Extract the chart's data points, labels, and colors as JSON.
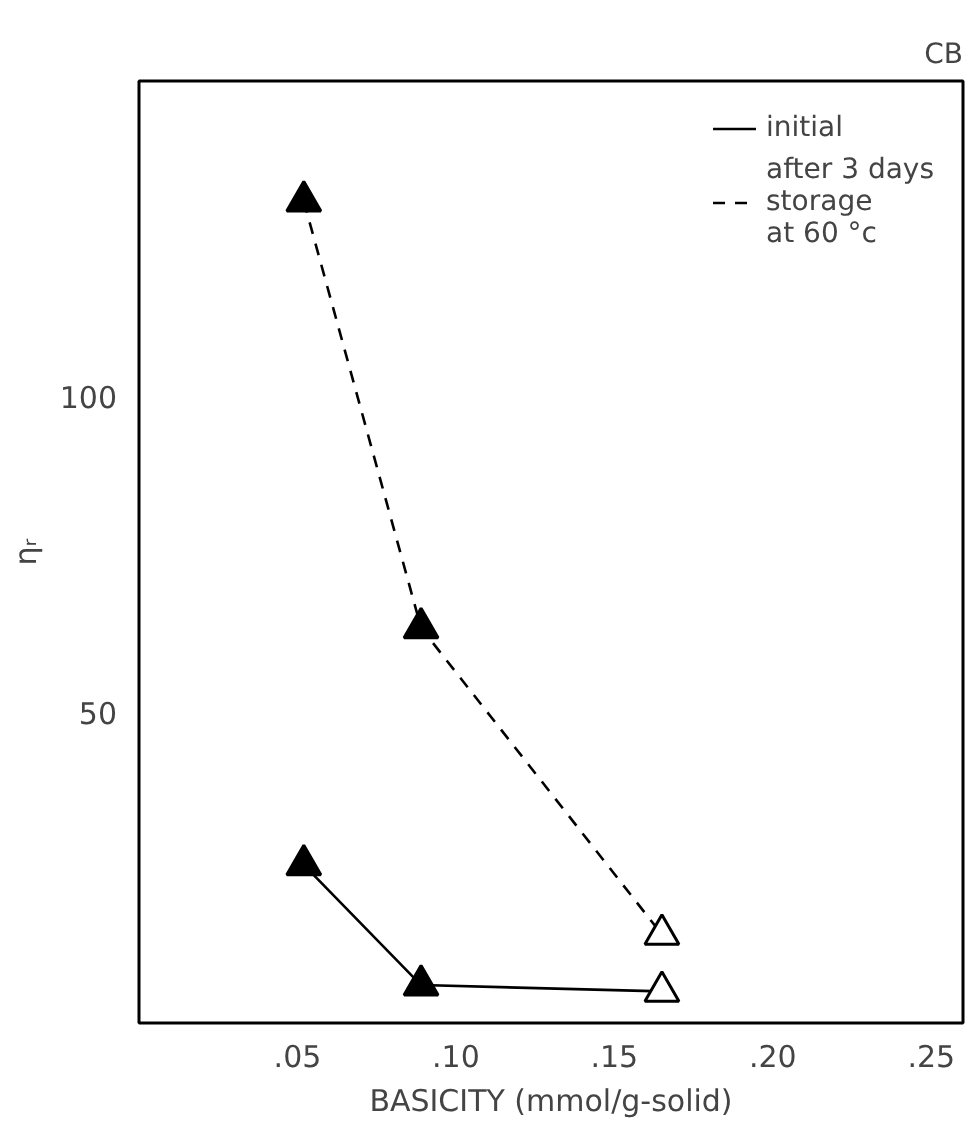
{
  "chart_data": {
    "type": "line",
    "title": "CB",
    "xlabel": "BASICITY (mmol/g-solid)",
    "ylabel": "ηᵣ",
    "xlim": [
      0,
      0.26
    ],
    "ylim": [
      1,
      150
    ],
    "xticks": [
      {
        "value": 0.05,
        "label": ".05"
      },
      {
        "value": 0.1,
        "label": ".10"
      },
      {
        "value": 0.15,
        "label": ".15"
      },
      {
        "value": 0.2,
        "label": ".20"
      },
      {
        "value": 0.25,
        "label": ".25"
      }
    ],
    "yticks": [
      50,
      100
    ],
    "x": [
      0.052,
      0.089,
      0.165
    ],
    "series": [
      {
        "name": "initial",
        "color": "#000000",
        "line_style": "solid",
        "colors": [
          "#000000",
          "#000000",
          "#ffffff"
        ],
        "values": [
          26,
          7,
          6
        ]
      },
      {
        "name": "after 3 days\nstorage\nat 60 °c",
        "color": "#000000",
        "line_style": "dashed",
        "colors": [
          "#000000",
          "#000000",
          "#ffffff"
        ],
        "values": [
          131,
          63.5,
          15
        ]
      }
    ],
    "marker": "triangle",
    "grid": false,
    "legend": "top right"
  }
}
